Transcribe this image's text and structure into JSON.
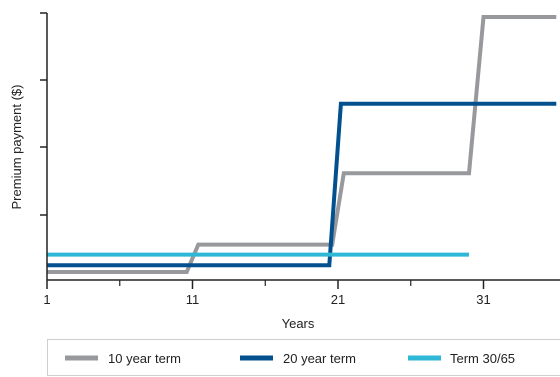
{
  "chart_data": {
    "type": "line",
    "title": "",
    "xlabel": "Years",
    "ylabel": "Premium payment ($)",
    "xlim": [
      1,
      36
    ],
    "ylim": [
      0,
      4
    ],
    "x_ticks": [
      1,
      11,
      21,
      31
    ],
    "x_minor_ticks": [
      6,
      16,
      26
    ],
    "y_ticks": [
      1,
      2,
      3,
      4
    ],
    "y_tick_labels_shown": false,
    "grid": false,
    "legend": "bottom",
    "series": [
      {
        "name": "10 year term",
        "color": "#97999c",
        "x": [
          1,
          10.6,
          11.4,
          20.6,
          21.4,
          30,
          31,
          36
        ],
        "y": [
          0.12,
          0.12,
          0.53,
          0.53,
          1.6,
          1.6,
          3.94,
          3.94
        ]
      },
      {
        "name": "20 year term",
        "color": "#03508f",
        "x": [
          1,
          20.4,
          21.2,
          36
        ],
        "y": [
          0.22,
          0.22,
          2.64,
          2.64
        ]
      },
      {
        "name": "Term 30/65",
        "color": "#2fb7d6",
        "x": [
          1,
          30
        ],
        "y": [
          0.38,
          0.38
        ]
      }
    ]
  }
}
